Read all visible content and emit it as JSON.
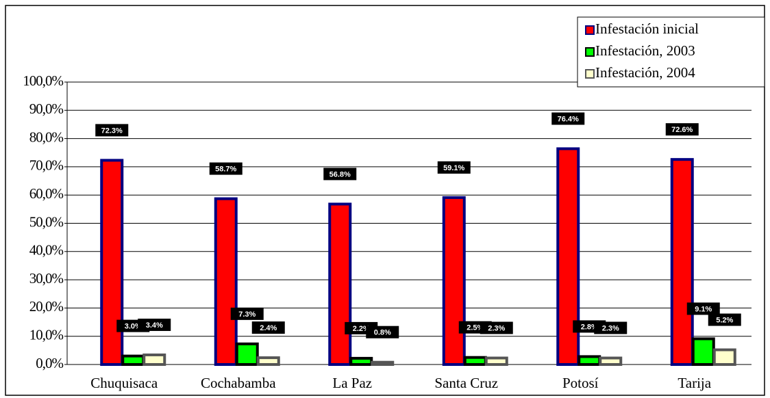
{
  "chart_data": {
    "type": "bar",
    "categories": [
      "Chuquisaca",
      "Cochabamba",
      "La Paz",
      "Santa Cruz",
      "Potosí",
      "Tarija"
    ],
    "series": [
      {
        "name": "Infestación inicial",
        "color": "#ff0000",
        "values": [
          72.3,
          58.7,
          56.8,
          59.1,
          76.4,
          72.6
        ],
        "value_labels": [
          "72.3%",
          "58.7%",
          "56.8%",
          "59.1%",
          "76.4%",
          "72.6%"
        ]
      },
      {
        "name": "Infestación, 2003",
        "color": "#00ff00",
        "values": [
          3.0,
          7.3,
          2.2,
          2.5,
          2.8,
          9.1
        ],
        "value_labels": [
          "3.0%",
          "7.3%",
          "2.2%",
          "2.5%",
          "2.8%",
          "9.1%"
        ]
      },
      {
        "name": "Infestación, 2004",
        "color": "#ffffcc",
        "values": [
          3.4,
          2.4,
          0.8,
          2.3,
          2.3,
          5.2
        ],
        "value_labels": [
          "3.4%",
          "2.4%",
          "0.8%",
          "2.3%",
          "2.3%",
          "5.2%"
        ]
      }
    ],
    "ylim": [
      0,
      100
    ],
    "yticks": [
      {
        "value": 0,
        "label": "0,0%"
      },
      {
        "value": 10,
        "label": "10,0%"
      },
      {
        "value": 20,
        "label": "20,0%"
      },
      {
        "value": 30,
        "label": "30,0%"
      },
      {
        "value": 40,
        "label": "40,0%"
      },
      {
        "value": 50,
        "label": "50,0%"
      },
      {
        "value": 60,
        "label": "60,0%"
      },
      {
        "value": 70,
        "label": "70,0%"
      },
      {
        "value": 80,
        "label": "80,0%"
      },
      {
        "value": 90,
        "label": "90,0%"
      },
      {
        "value": 100,
        "label": "100,0%"
      }
    ],
    "grid": true,
    "legend": "top-right"
  }
}
